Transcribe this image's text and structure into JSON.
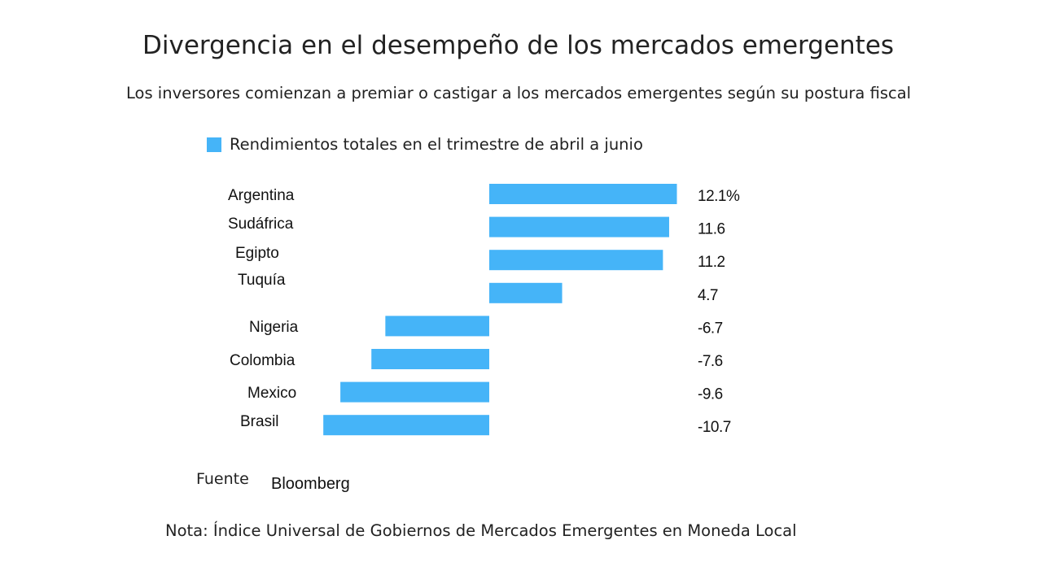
{
  "chart_data": {
    "type": "bar",
    "orientation": "horizontal",
    "title": "Divergencia en el desempeño de los mercados emergentes",
    "subtitle": "Los inversores comienzan a premiar o castigar a los mercados emergentes según su postura fiscal",
    "legend": {
      "entries": [
        "Rendimientos totales en el trimestre de abril a junio"
      ],
      "placement": "top-left"
    },
    "categories": [
      "Argentina",
      "Sudáfrica",
      "Egipto",
      "Tuquía",
      "Nigeria",
      "Colombia",
      "Mexico",
      "Brasil"
    ],
    "series": [
      {
        "name": "Rendimientos totales en el trimestre de abril a junio",
        "values": [
          12.1,
          11.6,
          11.2,
          4.7,
          -6.7,
          -7.6,
          -9.6,
          -10.7
        ],
        "color": "#45b4f8"
      }
    ],
    "data_labels": [
      "12.1%",
      "11.6",
      "11.2",
      "4.7",
      "-6.7",
      "-7.6",
      "-9.6",
      "-10.7"
    ],
    "grid": false,
    "xlabel": "",
    "ylabel": ""
  },
  "source": {
    "label": "Fuente",
    "value": "Bloomberg"
  },
  "note": "Nota:  Índice Universal de Gobiernos de Mercados Emergentes en Moneda Local"
}
